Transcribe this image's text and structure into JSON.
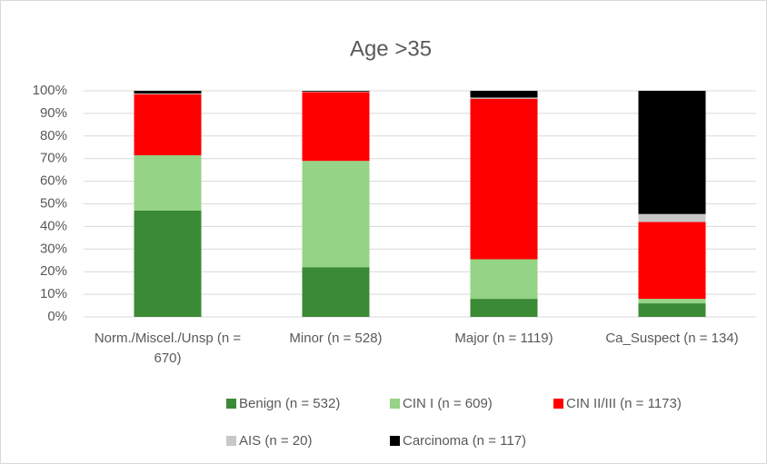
{
  "chart_data": {
    "type": "stacked_bar",
    "title": "Age >35",
    "categories": [
      "Norm./Miscel./Unsp (n = 670)",
      "Minor (n = 528)",
      "Major (n = 1119)",
      "Ca_Suspect (n = 134)"
    ],
    "series": [
      {
        "name": "Benign (n = 532)",
        "color": "#3b8a35",
        "values": [
          47,
          22,
          8,
          6
        ]
      },
      {
        "name": "CIN I (n = 609)",
        "color": "#95d386",
        "values": [
          24.5,
          47,
          17.5,
          2
        ]
      },
      {
        "name": "CIN II/III (n = 1173)",
        "color": "#ff0000",
        "values": [
          27,
          30.4,
          71,
          34
        ]
      },
      {
        "name": "AIS (n = 20)",
        "color": "#c8c8c8",
        "values": [
          0.3,
          0.3,
          0.5,
          3.5
        ]
      },
      {
        "name": "Carcinoma (n = 117)",
        "color": "#000000",
        "values": [
          1.2,
          0.3,
          3,
          54.5
        ]
      }
    ],
    "ylim": [
      0,
      100
    ],
    "yticks": [
      {
        "value": 0,
        "label": "0%"
      },
      {
        "value": 10,
        "label": "10%"
      },
      {
        "value": 20,
        "label": "20%"
      },
      {
        "value": 30,
        "label": "30%"
      },
      {
        "value": 40,
        "label": "40%"
      },
      {
        "value": 50,
        "label": "50%"
      },
      {
        "value": 60,
        "label": "60%"
      },
      {
        "value": 70,
        "label": "70%"
      },
      {
        "value": 80,
        "label": "80%"
      },
      {
        "value": 90,
        "label": "90%"
      },
      {
        "value": 100,
        "label": "100%"
      }
    ],
    "grid": true,
    "legend": "bottom"
  }
}
